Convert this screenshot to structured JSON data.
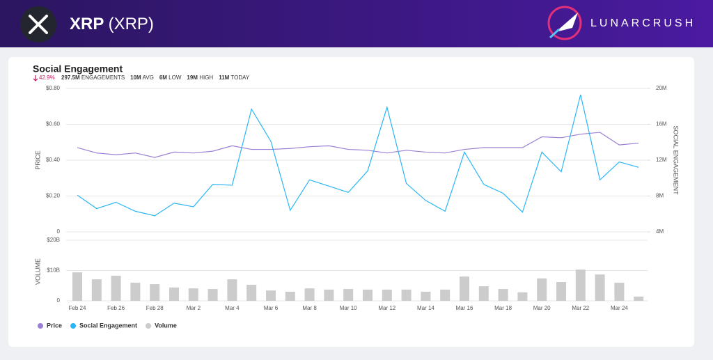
{
  "header": {
    "title": "XRP",
    "subtitle": "(XRP)",
    "brand": "LUNARCRUSH"
  },
  "chart_data": [
    {
      "type": "line",
      "title": "Social Engagement",
      "change": "42.9%",
      "stats": [
        {
          "value": "297.5M",
          "label": "ENGAGEMENTS"
        },
        {
          "value": "10M",
          "label": "AVG"
        },
        {
          "value": "6M",
          "label": "LOW"
        },
        {
          "value": "19M",
          "label": "HIGH"
        },
        {
          "value": "11M",
          "label": "TODAY"
        }
      ],
      "ylabel": "PRICE",
      "y2label": "SOCIAL ENGAGEMENT",
      "ylim": [
        0,
        0.8
      ],
      "yticks": [
        0,
        {
          "value": 0.2,
          "label": "$0.20"
        },
        {
          "value": 0.4,
          "label": "$0.40"
        },
        {
          "value": 0.6,
          "label": "$0.60"
        },
        {
          "value": 0.8,
          "label": "$0.80"
        }
      ],
      "y2lim": [
        4000000,
        20000000
      ],
      "y2ticks": [
        {
          "value": 4000000,
          "label": "4M"
        },
        {
          "value": 8000000,
          "label": "8M"
        },
        {
          "value": 12000000,
          "label": "12M"
        },
        {
          "value": 16000000,
          "label": "16M"
        },
        {
          "value": 20000000,
          "label": "20M"
        }
      ],
      "grid": true,
      "series": [
        {
          "name": "Price",
          "color": "#9b7fd4",
          "axis": "y",
          "values": [
            0.47,
            0.44,
            0.43,
            0.44,
            0.415,
            0.445,
            0.44,
            0.45,
            0.48,
            0.46,
            0.46,
            0.465,
            0.475,
            0.48,
            0.46,
            0.455,
            0.44,
            0.455,
            0.445,
            0.44,
            0.46,
            0.47,
            0.47,
            0.47,
            0.53,
            0.525,
            0.545,
            0.555,
            0.485,
            0.495
          ]
        },
        {
          "name": "Social Engagement",
          "color": "#29b6f6",
          "axis": "y2",
          "values": [
            8100000,
            6600000,
            7300000,
            6300000,
            5800000,
            7200000,
            6800000,
            9300000,
            9200000,
            17700000,
            14100000,
            6400000,
            9800000,
            9100000,
            8400000,
            10800000,
            17900000,
            9400000,
            7500000,
            6300000,
            12900000,
            9300000,
            8300000,
            6200000,
            12900000,
            10700000,
            19300000,
            9800000,
            11800000,
            11200000
          ]
        }
      ]
    },
    {
      "type": "bar",
      "ylabel": "VOLUME",
      "categories": [
        "Feb 24",
        null,
        "Feb 26",
        null,
        "Feb 28",
        null,
        "Mar 2",
        null,
        "Mar 4",
        null,
        "Mar 6",
        null,
        "Mar 8",
        null,
        "Mar 10",
        null,
        "Mar 12",
        null,
        "Mar 14",
        null,
        "Mar 16",
        null,
        "Mar 18",
        null,
        "Mar 20",
        null,
        "Mar 22",
        null,
        "Mar 24",
        null
      ],
      "ylim": [
        0,
        20000000000
      ],
      "yticks": [
        0,
        {
          "value": 10000000000,
          "label": "$10B"
        },
        {
          "value": 20000000000,
          "label": "$20B"
        }
      ],
      "grid": true,
      "series": [
        {
          "name": "Volume",
          "color": "#cccccc",
          "values": [
            9400000000,
            7100000000,
            8300000000,
            6000000000,
            5500000000,
            4400000000,
            4100000000,
            3900000000,
            7100000000,
            5300000000,
            3400000000,
            3000000000,
            4100000000,
            3700000000,
            3900000000,
            3700000000,
            3700000000,
            3700000000,
            3000000000,
            3700000000,
            8000000000,
            4800000000,
            3900000000,
            2800000000,
            7400000000,
            6200000000,
            10300000000,
            8700000000,
            6000000000,
            1400000000
          ]
        }
      ]
    }
  ]
}
